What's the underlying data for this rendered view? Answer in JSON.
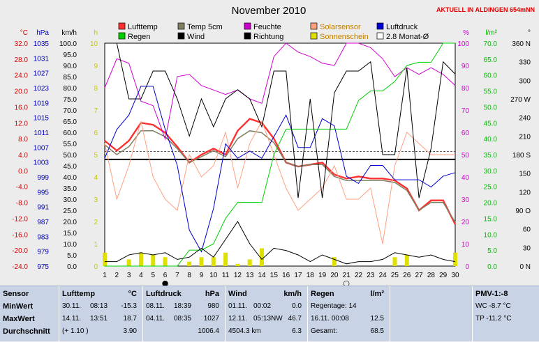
{
  "chart_data": {
    "type": "line",
    "title": "November 2010",
    "station": "AKTUELL IN ALDINGEN 654mNN",
    "x": [
      1,
      2,
      3,
      4,
      5,
      6,
      7,
      8,
      9,
      10,
      11,
      12,
      13,
      14,
      15,
      16,
      17,
      18,
      19,
      20,
      21,
      22,
      23,
      24,
      25,
      26,
      27,
      28,
      29,
      30
    ],
    "axes": {
      "temp_c": {
        "label": "°C",
        "ticks": [
          "32.0",
          "28.0",
          "24.0",
          "20.0",
          "16.0",
          "12.0",
          "8.0",
          "4.0",
          "0.0",
          "-4.0",
          "-8.0",
          "-12.0",
          "-16.0",
          "-20.0",
          "-24.0"
        ],
        "range": [
          -24,
          32
        ],
        "color": "#e00000"
      },
      "pressure_hpa": {
        "label": "hPa",
        "ticks": [
          "1035",
          "1031",
          "1027",
          "1023",
          "1019",
          "1015",
          "1011",
          "1007",
          "1003",
          "999",
          "995",
          "991",
          "987",
          "983",
          "979",
          "975"
        ],
        "range": [
          975,
          1037
        ],
        "color": "#0000c0"
      },
      "wind_kmh": {
        "label": "km/h",
        "ticks": [
          "100.0",
          "95.0",
          "90.0",
          "85.0",
          "80.0",
          "75.0",
          "70.0",
          "65.0",
          "60.0",
          "55.0",
          "50.0",
          "45.0",
          "40.0",
          "35.0",
          "30.0",
          "25.0",
          "20.0",
          "15.0",
          "10.0",
          "5.0",
          "0.0"
        ],
        "range": [
          0,
          100
        ],
        "color": "#000000"
      },
      "sun_h": {
        "label": "h",
        "ticks": [
          "10",
          "9",
          "8",
          "7",
          "6",
          "5",
          "4",
          "3",
          "2",
          "1",
          "0"
        ],
        "range": [
          0,
          10
        ],
        "color": "#c8c800"
      },
      "humidity_pct": {
        "label": "%",
        "ticks": [
          "100",
          "90",
          "80",
          "70",
          "60",
          "50",
          "40",
          "30",
          "20",
          "10",
          "0"
        ],
        "range": [
          0,
          100
        ],
        "color": "#d000d0"
      },
      "rain_lm2": {
        "label": "l/m²",
        "ticks": [
          "70.0",
          "65.0",
          "60.0",
          "55.0",
          "50.0",
          "45.0",
          "40.0",
          "35.0",
          "30.0",
          "25.0",
          "20.0",
          "15.0",
          "10.0",
          "5.0",
          "0.0"
        ],
        "range": [
          0,
          70
        ],
        "color": "#00c000"
      },
      "direction_deg": {
        "label": "°",
        "ticks": [
          "360 N",
          "330",
          "300",
          "270 W",
          "240",
          "210",
          "180 S",
          "150",
          "120",
          "90 O",
          "60",
          "30",
          "0 N"
        ],
        "range": [
          0,
          360
        ],
        "color": "#000000"
      }
    },
    "legend": [
      {
        "name": "Lufttemp",
        "color": "#ff3030"
      },
      {
        "name": "Temp 5cm",
        "color": "#808060"
      },
      {
        "name": "Feuchte",
        "color": "#d000d0"
      },
      {
        "name": "Solarsensor",
        "color": "#ffa080"
      },
      {
        "name": "Luftdruck",
        "color": "#0000d0"
      },
      {
        "name": "Regen",
        "color": "#00d000"
      },
      {
        "name": "Wind",
        "color": "#000000"
      },
      {
        "name": "Richtung",
        "color": "#000000"
      },
      {
        "name": "Sonnenschein",
        "color": "#e0e000"
      },
      {
        "name": "2.8 Monat-Ø",
        "color": "#ffffff"
      }
    ],
    "series": [
      {
        "name": "Lufttemp",
        "axis": "temp_c",
        "values": [
          7.5,
          5.0,
          7.5,
          12.0,
          11.5,
          9.5,
          6.0,
          2.0,
          4.0,
          5.5,
          4.0,
          10.0,
          13.0,
          12.0,
          8.0,
          2.0,
          1.0,
          1.5,
          2.0,
          -1.0,
          -2.0,
          -1.5,
          -2.0,
          -2.0,
          -2.5,
          -4.5,
          -10.0,
          -7.5,
          -7.5,
          -13.5
        ],
        "color": "#ff3030"
      },
      {
        "name": "Temp 5cm",
        "axis": "temp_c",
        "values": [
          6.5,
          4.0,
          6.0,
          10.0,
          10.0,
          8.5,
          5.5,
          2.0,
          3.5,
          5.0,
          3.5,
          8.0,
          10.0,
          9.5,
          7.0,
          2.0,
          1.0,
          1.5,
          1.5,
          -1.5,
          -2.5,
          -2.5,
          -2.5,
          -2.5,
          -3.0,
          -5.0,
          -10.0,
          -8.0,
          -8.0,
          -13.0
        ],
        "color": "#808060"
      },
      {
        "name": "Feuchte",
        "axis": "humidity_pct",
        "values": [
          80,
          93,
          91,
          74,
          72,
          57,
          85,
          86,
          81,
          79,
          77,
          79,
          75,
          73,
          94,
          100,
          96,
          94,
          91,
          90,
          100,
          100,
          98,
          93,
          85,
          89,
          86,
          89,
          86,
          81
        ],
        "color": "#d000d0"
      },
      {
        "name": "Solarsensor",
        "axis": "humidity_pct",
        "values": [
          55,
          30,
          45,
          65,
          40,
          30,
          25,
          50,
          40,
          45,
          60,
          35,
          55,
          65,
          50,
          35,
          25,
          30,
          35,
          45,
          30,
          30,
          35,
          10,
          45,
          60,
          55,
          50,
          50,
          50
        ],
        "color": "#ffa080"
      },
      {
        "name": "Luftdruck",
        "axis": "pressure_hpa",
        "values": [
          1005,
          1013,
          1017,
          1025,
          1025,
          1013,
          1003,
          985,
          979,
          991,
          1009,
          1005,
          1007,
          1005,
          1011,
          1017,
          1008,
          1008,
          1016,
          1014,
          1000,
          998,
          1003,
          1003,
          999,
          999,
          999,
          997,
          1000,
          1001
        ],
        "color": "#0000d0"
      },
      {
        "name": "Regen",
        "axis": "rain_lm2",
        "values": [
          0,
          0,
          0,
          0,
          0,
          0,
          0,
          5,
          5,
          7,
          15,
          20,
          20,
          20,
          35,
          43,
          43,
          43,
          43,
          43,
          43,
          52,
          55,
          55,
          58,
          63,
          64,
          64,
          70,
          70
        ],
        "color": "#00d000"
      },
      {
        "name": "Wind",
        "axis": "wind_kmh",
        "values": [
          2,
          2,
          5,
          6,
          5,
          6,
          3,
          4,
          8,
          4,
          12,
          20,
          10,
          3,
          8,
          7,
          5,
          2,
          5,
          3,
          1,
          2,
          2,
          3,
          6,
          5,
          4,
          5,
          3,
          2
        ],
        "color": "#000000"
      },
      {
        "name": "Richtung",
        "axis": "direction_deg",
        "values": [
          360,
          360,
          270,
          270,
          315,
          315,
          270,
          210,
          270,
          225,
          270,
          285,
          270,
          225,
          315,
          315,
          110,
          270,
          110,
          280,
          315,
          315,
          330,
          180,
          180,
          320,
          110,
          190,
          330,
          310
        ],
        "color": "#000000"
      },
      {
        "name": "Sonnenschein",
        "axis": "sun_h",
        "values": [
          0.6,
          0,
          0.3,
          0.6,
          0.5,
          0.4,
          0,
          0.2,
          0.4,
          0.4,
          0.6,
          0.1,
          0.3,
          0.8,
          0,
          0,
          0,
          0,
          0,
          0.4,
          0,
          0,
          0,
          0,
          0.4,
          0.5,
          0,
          0,
          0,
          0.6
        ],
        "color": "#e0e000"
      }
    ],
    "reference_lines": [
      {
        "name": "2.8 Monat-Ø",
        "axis": "temp_c",
        "value": 2.8,
        "color": "#000000"
      }
    ],
    "moon_phases": [
      {
        "day": 6,
        "symbol": "●"
      },
      {
        "day": 21,
        "symbol": "○"
      }
    ],
    "grid": false
  },
  "table": {
    "sensor": {
      "head": "Sensor",
      "rows": [
        "MinWert",
        "MaxWert",
        "Durchschnitt"
      ]
    },
    "lufttemp": {
      "head": "Lufttemp",
      "unit": "°C",
      "rows": [
        {
          "date": "30.11.",
          "time": "08:13",
          "val": "-15.3"
        },
        {
          "date": "14.11.",
          "time": "13:51",
          "val": "18.7"
        },
        {
          "date": "(+ 1.10 )",
          "time": "",
          "val": "3.90"
        }
      ]
    },
    "luftdruck": {
      "head": "Luftdruck",
      "unit": "hPa",
      "rows": [
        {
          "date": "08.11.",
          "time": "18:39",
          "val": "980"
        },
        {
          "date": "04.11.",
          "time": "08:35",
          "val": "1027"
        },
        {
          "date": "",
          "time": "",
          "val": "1006.4"
        }
      ]
    },
    "wind": {
      "head": "Wind",
      "unit": "km/h",
      "rows": [
        {
          "date": "01.11.",
          "time": "00:02",
          "val": "0.0"
        },
        {
          "date": "12.11.",
          "time": "05:13NW",
          "val": "46.7"
        },
        {
          "date": "4504.3 km",
          "time": "",
          "val": "6.3"
        }
      ]
    },
    "regen": {
      "head": "Regen",
      "unit": "l/m²",
      "rows": [
        {
          "label": "Regentage: 14",
          "val": ""
        },
        {
          "label": "16.11.   00:08",
          "val": "12.5"
        },
        {
          "label": "Gesamt:",
          "val": "68.5"
        }
      ]
    },
    "pmv": {
      "head": "PMV-1:-8",
      "rows": [
        "WC -8.7 °C",
        "TP -11.2 °C"
      ]
    }
  }
}
